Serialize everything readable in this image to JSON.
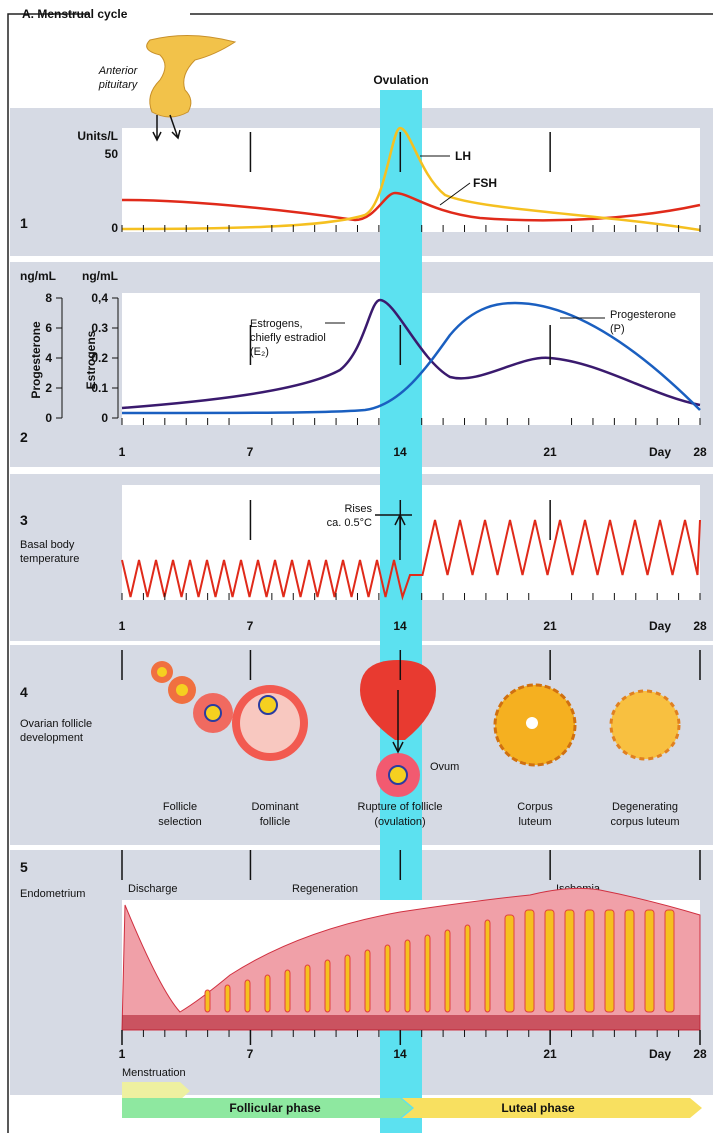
{
  "title": "A. Menstrual cycle",
  "ovulation": "Ovulation",
  "pituitary": [
    "Anterior",
    "pituitary"
  ],
  "panel1": {
    "number": "1",
    "unit": "Units/L",
    "ticks": [
      "50",
      "0"
    ],
    "lh": "LH",
    "fsh": "FSH"
  },
  "panel2": {
    "number": "2",
    "unit_left": "ng/mL",
    "unit_right": "ng/mL",
    "left_ticks": [
      "8",
      "6",
      "4",
      "2",
      "0"
    ],
    "right_ticks": [
      "0,4",
      "0.3",
      "0.2",
      "0.1",
      "0"
    ],
    "left_axis": "Progesterone",
    "right_axis": "Estrogens",
    "estrogen_label": [
      "Estrogens,",
      "chiefly estradiol",
      "(E₂)"
    ],
    "progesterone_label": [
      "Progesterone",
      "(P)"
    ],
    "days": [
      "1",
      "7",
      "14",
      "21",
      "28"
    ],
    "day": "Day"
  },
  "panel3": {
    "number": "3",
    "label": [
      "Basal body",
      "temperature"
    ],
    "rises": [
      "Rises",
      "ca. 0.5°C"
    ],
    "days": [
      "1",
      "7",
      "14",
      "21",
      "28"
    ],
    "day": "Day"
  },
  "panel4": {
    "number": "4",
    "label": [
      "Ovarian follicle",
      "development"
    ],
    "ovum": "Ovum",
    "captions": [
      [
        "Follicle",
        "selection"
      ],
      [
        "Dominant",
        "follicle"
      ],
      [
        "Rupture of follicle",
        "(ovulation)"
      ],
      [
        "Corpus",
        "luteum"
      ],
      [
        "Degenerating",
        "corpus luteum"
      ]
    ]
  },
  "panel5": {
    "number": "5",
    "label": "Endometrium",
    "phases": [
      "Discharge",
      "Regeneration",
      "Ischemia"
    ],
    "days": [
      "1",
      "7",
      "14",
      "21",
      "28"
    ],
    "day": "Day"
  },
  "bottom": {
    "menstruation": "Menstruation",
    "follicular": "Follicular phase",
    "luteal": "Luteal phase"
  }
}
